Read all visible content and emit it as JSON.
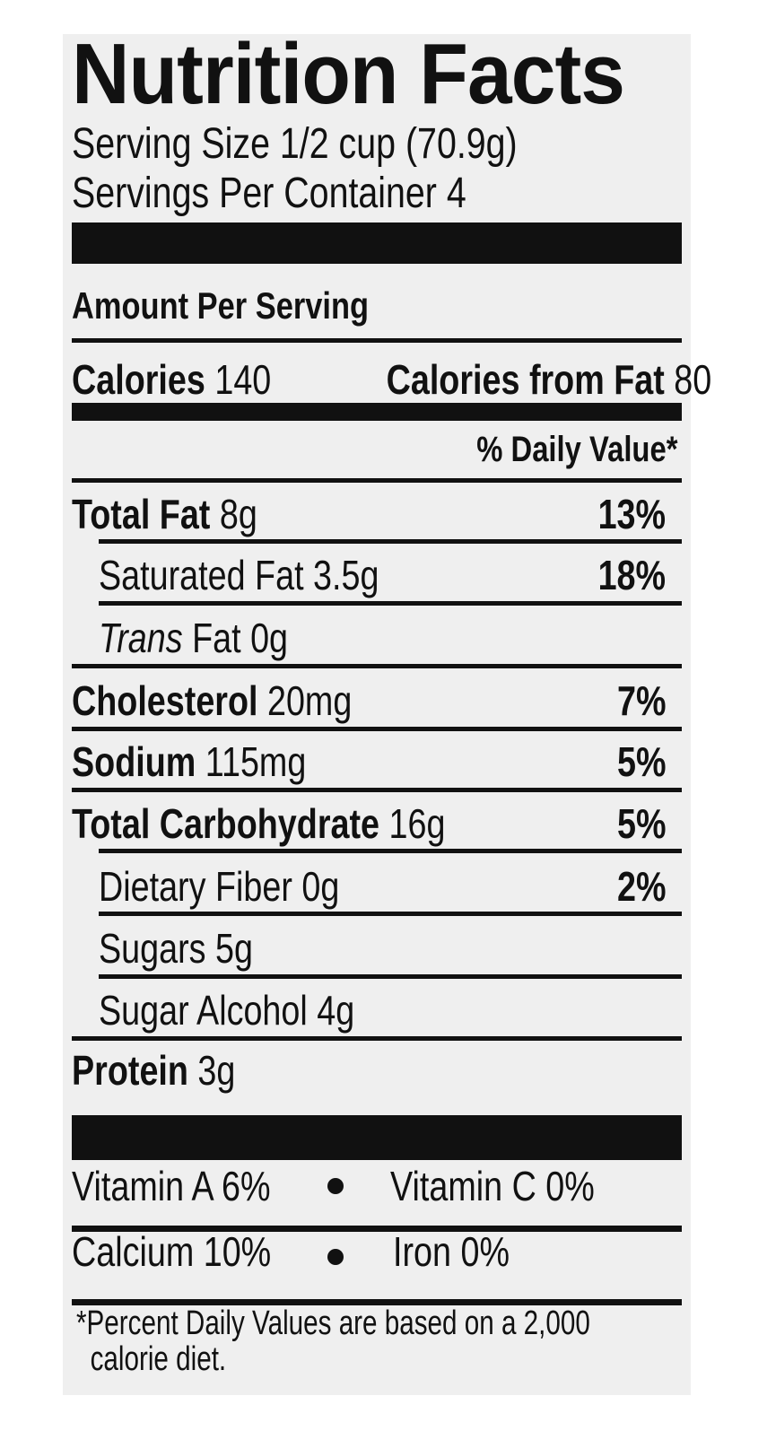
{
  "title": "Nutrition Facts",
  "serving_size": "Serving Size 1/2 cup (70.9g)",
  "servings_per_container": "Servings Per Container 4",
  "amount_per_serving": "Amount Per Serving",
  "calories": {
    "label": "Calories",
    "value": "140",
    "fat_label": "Calories from Fat",
    "fat_value": "80"
  },
  "daily_value_header": "% Daily Value*",
  "nutrients": [
    {
      "label": "Total Fat",
      "amount": "8g",
      "dv": "13%"
    },
    {
      "label": "Saturated Fat",
      "amount": "3.5g",
      "dv": "18%"
    },
    {
      "label": "Trans",
      "amount": "Fat 0g",
      "dv": ""
    },
    {
      "label": "Cholesterol",
      "amount": "20mg",
      "dv": "7%"
    },
    {
      "label": "Sodium",
      "amount": "115mg",
      "dv": "5%"
    },
    {
      "label": "Total Carbohydrate",
      "amount": "16g",
      "dv": "5%"
    },
    {
      "label": "Dietary Fiber",
      "amount": "0g",
      "dv": "2%"
    },
    {
      "label": "Sugars",
      "amount": "5g",
      "dv": ""
    },
    {
      "label": "Sugar Alcohol",
      "amount": "4g",
      "dv": ""
    },
    {
      "label": "Protein",
      "amount": "3g",
      "dv": ""
    }
  ],
  "vitamins": [
    {
      "left": "Vitamin A 6%",
      "right": "Vitamin C 0%"
    },
    {
      "left": "Calcium 10%",
      "right": "Iron 0%"
    }
  ],
  "footnote": {
    "line1": "*Percent Daily Values are based on a 2,000",
    "line2": "calorie diet."
  }
}
